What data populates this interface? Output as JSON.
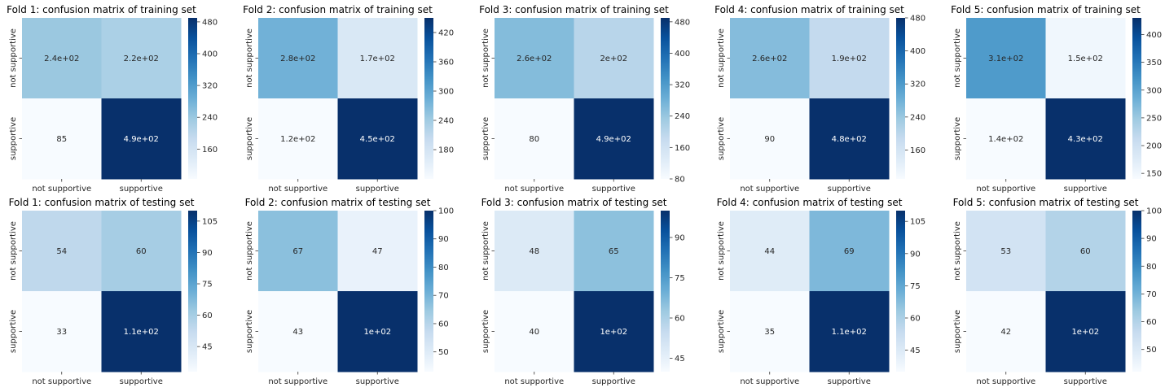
{
  "colors": {
    "cmap": [
      "#f7fbff",
      "#deebf7",
      "#c6dbef",
      "#9ecae1",
      "#6baed6",
      "#4292c6",
      "#2171b5",
      "#08519c",
      "#08306b"
    ]
  },
  "chart_data": [
    {
      "type": "heatmap",
      "title": "Fold 1: confusion matrix of training set",
      "x_ticks": [
        "not supportive",
        "supportive"
      ],
      "y_ticks": [
        "not supportive",
        "supportive"
      ],
      "values": [
        [
          240,
          220
        ],
        [
          85,
          490
        ]
      ],
      "annotations": [
        [
          "2.4e+02",
          "2.2e+02"
        ],
        [
          "85",
          "4.9e+02"
        ]
      ],
      "colorbar": {
        "range": [
          85,
          490
        ],
        "ticks": [
          160,
          240,
          320,
          400,
          480
        ]
      }
    },
    {
      "type": "heatmap",
      "title": "Fold 2: confusion matrix of training set",
      "x_ticks": [
        "not supportive",
        "supportive"
      ],
      "y_ticks": [
        "not supportive",
        "supportive"
      ],
      "values": [
        [
          280,
          170
        ],
        [
          120,
          450
        ]
      ],
      "annotations": [
        [
          "2.8e+02",
          "1.7e+02"
        ],
        [
          "1.2e+02",
          "4.5e+02"
        ]
      ],
      "colorbar": {
        "range": [
          120,
          450
        ],
        "ticks": [
          180,
          240,
          300,
          360,
          420
        ]
      }
    },
    {
      "type": "heatmap",
      "title": "Fold 3: confusion matrix of training set",
      "x_ticks": [
        "not supportive",
        "supportive"
      ],
      "y_ticks": [
        "not supportive",
        "supportive"
      ],
      "values": [
        [
          260,
          200
        ],
        [
          80,
          490
        ]
      ],
      "annotations": [
        [
          "2.6e+02",
          "2e+02"
        ],
        [
          "80",
          "4.9e+02"
        ]
      ],
      "colorbar": {
        "range": [
          80,
          490
        ],
        "ticks": [
          80,
          160,
          240,
          320,
          400,
          480
        ]
      }
    },
    {
      "type": "heatmap",
      "title": "Fold 4: confusion matrix of training set",
      "x_ticks": [
        "not supportive",
        "supportive"
      ],
      "y_ticks": [
        "not supportive",
        "supportive"
      ],
      "values": [
        [
          260,
          190
        ],
        [
          90,
          480
        ]
      ],
      "annotations": [
        [
          "2.6e+02",
          "1.9e+02"
        ],
        [
          "90",
          "4.8e+02"
        ]
      ],
      "colorbar": {
        "range": [
          90,
          480
        ],
        "ticks": [
          160,
          240,
          320,
          400,
          480
        ]
      }
    },
    {
      "type": "heatmap",
      "title": "Fold 5: confusion matrix of training set",
      "x_ticks": [
        "not supportive",
        "supportive"
      ],
      "y_ticks": [
        "not supportive",
        "supportive"
      ],
      "values": [
        [
          310,
          150
        ],
        [
          140,
          430
        ]
      ],
      "annotations": [
        [
          "3.1e+02",
          "1.5e+02"
        ],
        [
          "1.4e+02",
          "4.3e+02"
        ]
      ],
      "colorbar": {
        "range": [
          140,
          430
        ],
        "ticks": [
          150,
          200,
          250,
          300,
          350,
          400
        ]
      }
    },
    {
      "type": "heatmap",
      "title": "Fold 1: confusion matrix of testing set",
      "x_ticks": [
        "not supportive",
        "supportive"
      ],
      "y_ticks": [
        "not supportive",
        "supportive"
      ],
      "values": [
        [
          54,
          60
        ],
        [
          33,
          110
        ]
      ],
      "annotations": [
        [
          "54",
          "60"
        ],
        [
          "33",
          "1.1e+02"
        ]
      ],
      "colorbar": {
        "range": [
          33,
          110
        ],
        "ticks": [
          45,
          60,
          75,
          90,
          105
        ]
      }
    },
    {
      "type": "heatmap",
      "title": "Fold 2: confusion matrix of testing set",
      "x_ticks": [
        "not supportive",
        "supportive"
      ],
      "y_ticks": [
        "not supportive",
        "supportive"
      ],
      "values": [
        [
          67,
          47
        ],
        [
          43,
          100
        ]
      ],
      "annotations": [
        [
          "67",
          "47"
        ],
        [
          "43",
          "1e+02"
        ]
      ],
      "colorbar": {
        "range": [
          43,
          100
        ],
        "ticks": [
          50,
          60,
          70,
          80,
          90,
          100
        ]
      }
    },
    {
      "type": "heatmap",
      "title": "Fold 3: confusion matrix of testing set",
      "x_ticks": [
        "not supportive",
        "supportive"
      ],
      "y_ticks": [
        "not supportive",
        "supportive"
      ],
      "values": [
        [
          48,
          65
        ],
        [
          40,
          100
        ]
      ],
      "annotations": [
        [
          "48",
          "65"
        ],
        [
          "40",
          "1e+02"
        ]
      ],
      "colorbar": {
        "range": [
          40,
          100
        ],
        "ticks": [
          45,
          60,
          75,
          90
        ]
      }
    },
    {
      "type": "heatmap",
      "title": "Fold 4: confusion matrix of testing set",
      "x_ticks": [
        "not supportive",
        "supportive"
      ],
      "y_ticks": [
        "not supportive",
        "supportive"
      ],
      "values": [
        [
          44,
          69
        ],
        [
          35,
          110
        ]
      ],
      "annotations": [
        [
          "44",
          "69"
        ],
        [
          "35",
          "1.1e+02"
        ]
      ],
      "colorbar": {
        "range": [
          35,
          110
        ],
        "ticks": [
          45,
          60,
          75,
          90,
          105
        ]
      }
    },
    {
      "type": "heatmap",
      "title": "Fold 5: confusion matrix of testing set",
      "x_ticks": [
        "not supportive",
        "supportive"
      ],
      "y_ticks": [
        "not supportive",
        "supportive"
      ],
      "values": [
        [
          53,
          60
        ],
        [
          42,
          100
        ]
      ],
      "annotations": [
        [
          "53",
          "60"
        ],
        [
          "42",
          "1e+02"
        ]
      ],
      "colorbar": {
        "range": [
          42,
          100
        ],
        "ticks": [
          50,
          60,
          70,
          80,
          90,
          100
        ]
      }
    }
  ]
}
